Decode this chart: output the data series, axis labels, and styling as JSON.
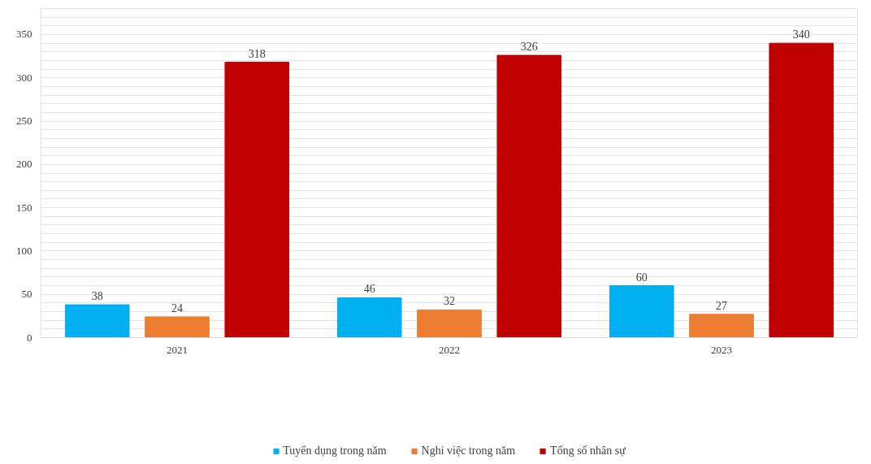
{
  "chart_data": {
    "type": "bar",
    "categories": [
      "2021",
      "2022",
      "2023"
    ],
    "series": [
      {
        "name": "Tuyển dụng trong năm",
        "color": "#00b0f0",
        "values": [
          38,
          46,
          60
        ]
      },
      {
        "name": "Nghỉ việc trong năm",
        "color": "#ed7d31",
        "values": [
          24,
          32,
          27
        ]
      },
      {
        "name": "Tổng số nhân sự",
        "color": "#c00000",
        "values": [
          318,
          326,
          340
        ]
      }
    ],
    "ylim": [
      0,
      380
    ],
    "yticks": [
      0,
      {
        "value": 10,
        "label": null
      },
      {
        "value": 20,
        "label": null
      },
      {
        "value": 30,
        "label": null
      },
      {
        "value": 40,
        "label": null
      },
      50,
      {
        "value": 60,
        "label": null
      },
      {
        "value": 70,
        "label": null
      },
      {
        "value": 80,
        "label": null
      },
      {
        "value": 90,
        "label": null
      },
      100,
      {
        "value": 110,
        "label": null
      },
      {
        "value": 120,
        "label": null
      },
      {
        "value": 130,
        "label": null
      },
      {
        "value": 140,
        "label": null
      },
      150,
      {
        "value": 160,
        "label": null
      },
      {
        "value": 170,
        "label": null
      },
      {
        "value": 180,
        "label": null
      },
      {
        "value": 190,
        "label": null
      },
      200,
      {
        "value": 210,
        "label": null
      },
      {
        "value": 220,
        "label": null
      },
      {
        "value": 230,
        "label": null
      },
      {
        "value": 240,
        "label": null
      },
      250,
      {
        "value": 260,
        "label": null
      },
      {
        "value": 270,
        "label": null
      },
      {
        "value": 280,
        "label": null
      },
      {
        "value": 290,
        "label": null
      },
      300,
      {
        "value": 310,
        "label": null
      },
      {
        "value": 320,
        "label": null
      },
      {
        "value": 330,
        "label": null
      },
      {
        "value": 340,
        "label": null
      },
      350,
      {
        "value": 360,
        "label": null
      },
      {
        "value": 370,
        "label": null
      },
      {
        "value": 380,
        "label": null
      }
    ],
    "grid": "y",
    "legend": "bottom",
    "data_labels": true
  }
}
